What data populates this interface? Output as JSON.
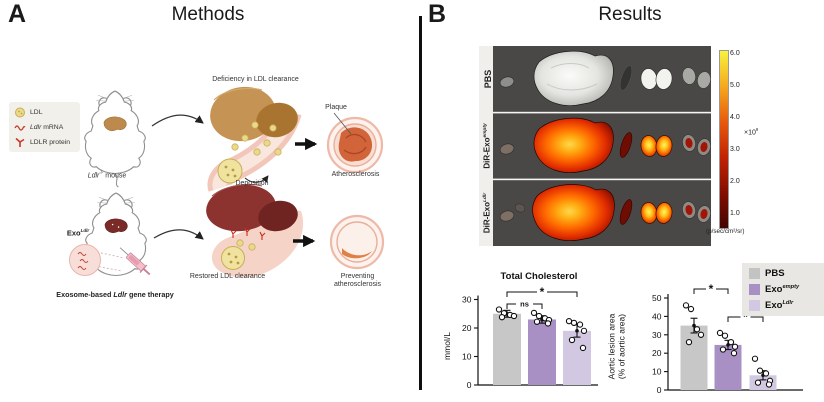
{
  "panel_a": {
    "label": "A",
    "title": "Methods",
    "legend": {
      "ldl": "LDL",
      "mrna_italic": "Ldlr",
      "mrna_rest": " mRNA",
      "protein": "LDLR protein"
    },
    "mouse_caption": {
      "italic": "Ldlr",
      "sup": "-/-",
      "rest": " mouse"
    },
    "flow_top": {
      "title": "Deficiency in LDL clearance",
      "deposition": "Deposition",
      "plaque": "Plaque",
      "outcome": "Atherosclerosis"
    },
    "exo_label": {
      "base": "Exo",
      "sup": "Ldlr"
    },
    "therapy": {
      "pre": "Exosome-based ",
      "italic": "Ldlr",
      "post": " gene therapy"
    },
    "flow_bottom": {
      "title": "Restored LDL clearance",
      "outcome": "Preventing\natherosclerosis"
    }
  },
  "panel_b": {
    "label": "B",
    "title": "Results",
    "imaging": {
      "rows": [
        {
          "base": "PBS",
          "sup": ""
        },
        {
          "base": "DiR-Exo",
          "sup": "empty"
        },
        {
          "base": "DiR-Exo",
          "sup": "Ldlr"
        }
      ],
      "colorbar": {
        "ticks": [
          "6.0",
          "5.0",
          "4.0",
          "3.0",
          "2.0",
          "1.0"
        ],
        "mult_base": "×10",
        "mult_sup": "9",
        "unit": "(p/sec/cm²/sr)"
      }
    },
    "legend": {
      "items": [
        {
          "base": "PBS",
          "sup": "",
          "color": "#c3c3c3"
        },
        {
          "base": "Exo",
          "sup": "empty",
          "color": "#a890c5"
        },
        {
          "base": "Exo",
          "sup": "Ldlr",
          "color": "#d3c8e2"
        }
      ]
    }
  },
  "chart_data": [
    {
      "type": "bar",
      "title": "Total Cholesterol",
      "ylabel": "mmol/L",
      "ylim": [
        0,
        30
      ],
      "yticks": [
        0,
        10,
        20,
        30
      ],
      "categories": [
        "PBS",
        "Exo empty",
        "Exo Ldlr"
      ],
      "values": [
        25,
        23,
        19
      ],
      "errors": [
        1.2,
        1.3,
        2.2
      ],
      "points": [
        [
          26.5,
          25.2,
          24.6,
          24.2,
          23.8
        ],
        [
          25.3,
          24.2,
          23.4,
          22.8,
          22.2,
          21.6
        ],
        [
          22.4,
          21.8,
          21.2,
          19.0,
          15.8,
          13.0
        ]
      ],
      "bar_colors": [
        "#c7c7c7",
        "#a890c5",
        "#d3c8e2"
      ],
      "significance": [
        {
          "from": 0,
          "to": 1,
          "label": "ns"
        },
        {
          "from": 0,
          "to": 2,
          "label": "*"
        }
      ],
      "legend_position": "none",
      "grid": false
    },
    {
      "type": "bar",
      "title": "",
      "ylabel": "Aortic lesion area\n(% of aortic area)",
      "ylim": [
        0,
        50
      ],
      "yticks": [
        0,
        10,
        20,
        30,
        40,
        50
      ],
      "categories": [
        "PBS",
        "Exo empty",
        "Exo Ldlr"
      ],
      "values": [
        35,
        24.5,
        8
      ],
      "errors": [
        4,
        2.5,
        2.5
      ],
      "points": [
        [
          46,
          44,
          33,
          30,
          26
        ],
        [
          31,
          29.5,
          26,
          23.5,
          22,
          20
        ],
        [
          17,
          10.5,
          9,
          5,
          4,
          3
        ]
      ],
      "bar_colors": [
        "#c7c7c7",
        "#a890c5",
        "#d3c8e2"
      ],
      "significance": [
        {
          "from": 0,
          "to": 1,
          "label": "*"
        },
        {
          "from": 1,
          "to": 2,
          "label": "*"
        }
      ],
      "legend_position": "right",
      "grid": false
    }
  ]
}
